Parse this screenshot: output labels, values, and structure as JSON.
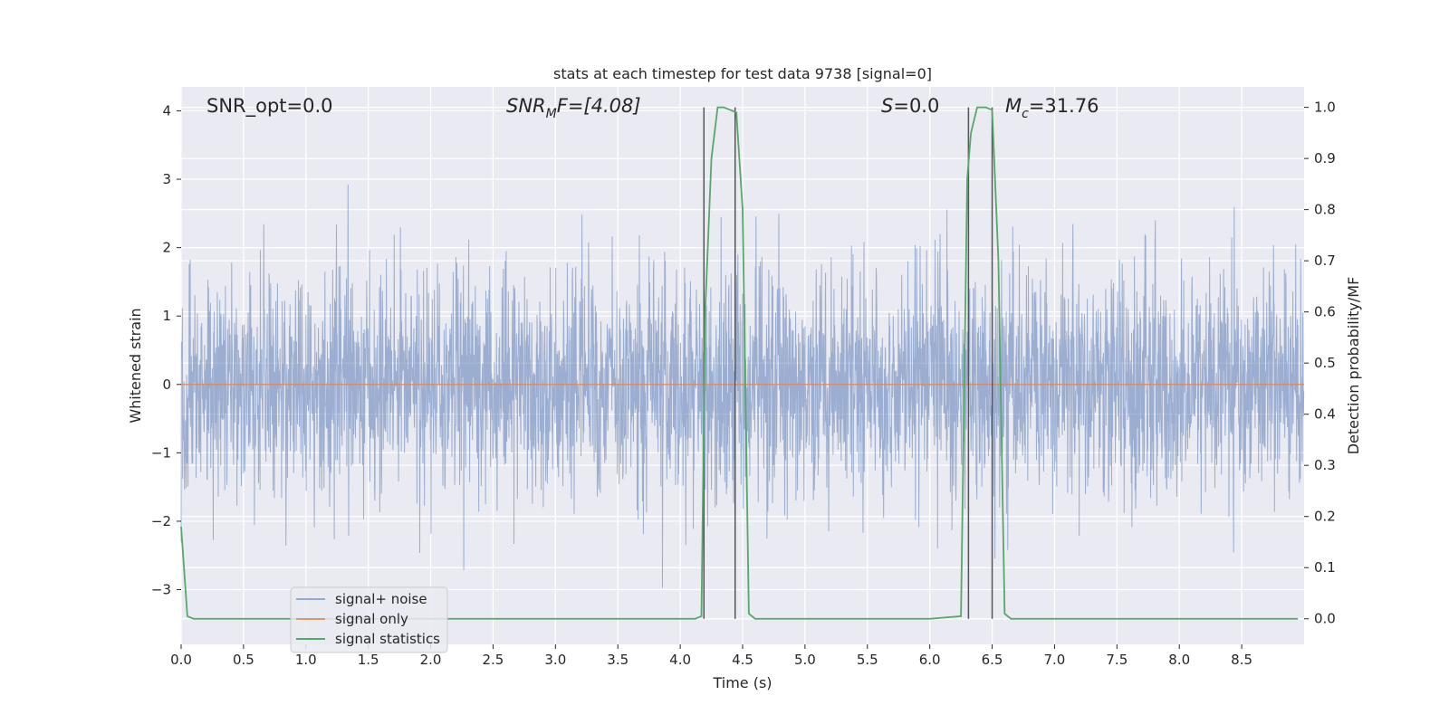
{
  "chart_data": {
    "type": "line",
    "title": "stats at each timestep for test data 9738 [signal=0]",
    "xlabel": "Time (s)",
    "ylabel": "Whitened strain",
    "y2label": "Detection probability/MF",
    "xlim": [
      0.0,
      9.0
    ],
    "ylim": [
      -3.8,
      4.35
    ],
    "y2lim": [
      -0.05,
      1.04
    ],
    "x_ticks": [
      "0.0",
      "0.5",
      "1.0",
      "1.5",
      "2.0",
      "2.5",
      "3.0",
      "3.5",
      "4.0",
      "4.5",
      "5.0",
      "5.5",
      "6.0",
      "6.5",
      "7.0",
      "7.5",
      "8.0",
      "8.5"
    ],
    "y_ticks": [
      "4",
      "3",
      "2",
      "1",
      "0",
      "−1",
      "−2",
      "−3"
    ],
    "y2_ticks": [
      "1.0",
      "0.9",
      "0.8",
      "0.7",
      "0.6",
      "0.5",
      "0.4",
      "0.3",
      "0.2",
      "0.1",
      "0.0"
    ],
    "grid": true,
    "background": "#eaeaf2",
    "annotations": {
      "snr_opt": "SNR_opt=0.0",
      "snr_mf": "SNR",
      "snr_mf_sub": "M",
      "snr_mf_rest": "F=[4.08]",
      "s_label": "S",
      "s_value": "=0.0",
      "mc_label": "M",
      "mc_sub": "c",
      "mc_value": "=31.76"
    },
    "legend_position": "lower-left",
    "series": [
      {
        "name": "signal+ noise",
        "color": "#4c72b0",
        "kind": "noise",
        "sampling_hz": 400,
        "sigma": 0.8,
        "range": [
          -3.6,
          4.0
        ]
      },
      {
        "name": "signal only",
        "color": "#dd8452",
        "x": [
          0.0,
          9.0
        ],
        "y": [
          0.0,
          0.0
        ]
      },
      {
        "name": "signal statistics",
        "color": "#55a868",
        "axis": "right",
        "x": [
          0.0,
          0.05,
          0.1,
          0.5,
          1.0,
          2.0,
          3.0,
          4.0,
          4.12,
          4.17,
          4.2,
          4.25,
          4.3,
          4.35,
          4.4,
          4.45,
          4.5,
          4.55,
          4.6,
          5.0,
          5.5,
          6.0,
          6.25,
          6.3,
          6.33,
          6.38,
          6.45,
          6.5,
          6.55,
          6.6,
          6.65,
          6.7,
          7.0,
          8.0,
          8.95
        ],
        "y": [
          0.18,
          0.005,
          0.0,
          0.0,
          0.0,
          0.0,
          0.0,
          0.0,
          0.0,
          0.005,
          0.6,
          0.9,
          1.0,
          1.0,
          0.995,
          0.99,
          0.8,
          0.01,
          0.0,
          0.0,
          0.0,
          0.0,
          0.005,
          0.86,
          0.95,
          1.0,
          1.0,
          0.995,
          0.7,
          0.01,
          0.0,
          0.0,
          0.0,
          0.0,
          0.0
        ]
      }
    ],
    "vertical_lines": [
      {
        "x": 4.19,
        "color": "#555555"
      },
      {
        "x": 4.44,
        "color": "#555555"
      },
      {
        "x": 6.31,
        "color": "#555555"
      },
      {
        "x": 6.5,
        "color": "#555555"
      }
    ]
  }
}
